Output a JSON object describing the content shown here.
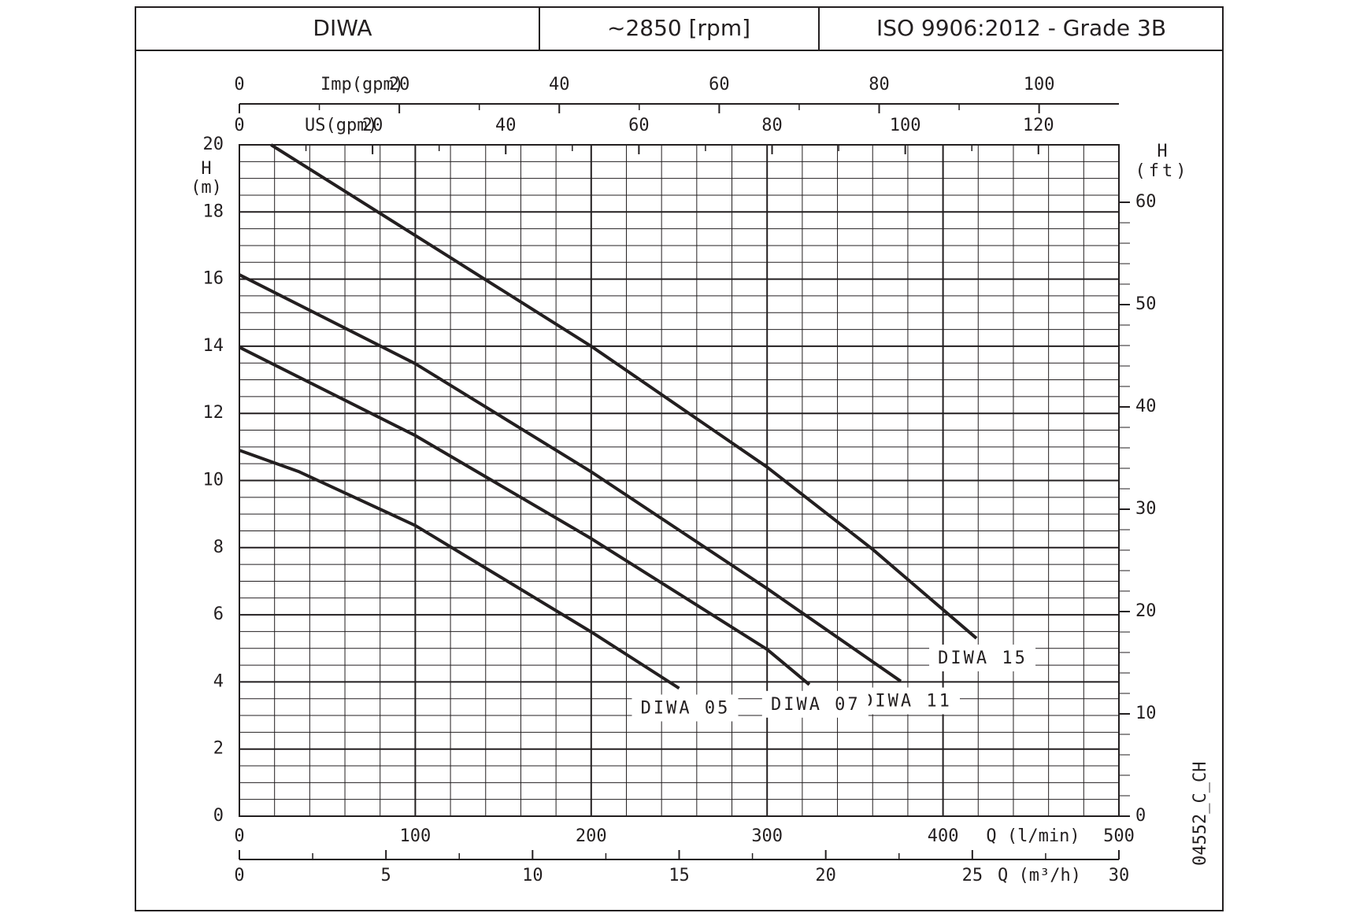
{
  "header": [
    "DIWA",
    "~2850 [rpm]",
    "ISO 9906:2012 - Grade 3B"
  ],
  "chart_data": {
    "type": "line",
    "xlim": [
      0,
      500
    ],
    "xticks": [
      0,
      100,
      200,
      300,
      400,
      500
    ],
    "xlabel": "Q (l/min)",
    "ylim": [
      0,
      20
    ],
    "yticks": [
      0,
      2,
      4,
      6,
      8,
      10,
      12,
      14,
      16,
      18,
      20
    ],
    "ylabel": [
      "H",
      "(m)"
    ],
    "y2lim": [
      0,
      65.6168
    ],
    "y2ticks": [
      0,
      10,
      20,
      30,
      40,
      50,
      60
    ],
    "y2label": [
      "H",
      "(ft)"
    ],
    "grid": true,
    "x_minor_divisions": 5,
    "y_minor_divisions": 4,
    "y2_minor_divisions": 5,
    "extra_x_axes": [
      {
        "label": "Imp(gpm)",
        "lim": [
          0,
          109.98
        ],
        "ticks": [
          0,
          20,
          40,
          60,
          80,
          100
        ],
        "position": "top"
      },
      {
        "label": "US(gpm)",
        "lim": [
          0,
          132.09
        ],
        "ticks": [
          0,
          20,
          40,
          60,
          80,
          100,
          120
        ],
        "position": "top"
      },
      {
        "label": "Q (m³/h)",
        "lim": [
          0,
          30
        ],
        "ticks": [
          0,
          5,
          10,
          15,
          20,
          25,
          30
        ],
        "position": "bottom"
      }
    ],
    "series": [
      {
        "name": "DIWA 15",
        "color": "#231f20",
        "x": [
          18,
          100,
          200,
          300,
          360,
          419
        ],
        "values": [
          20,
          17.3,
          14.0,
          10.4,
          7.95,
          5.3
        ]
      },
      {
        "name": "DIWA 11",
        "color": "#231f20",
        "x": [
          0,
          100,
          200,
          300,
          376
        ],
        "values": [
          16.13,
          13.48,
          10.26,
          6.78,
          4.02
        ]
      },
      {
        "name": "DIWA 07",
        "color": "#231f20",
        "x": [
          0,
          100,
          200,
          300,
          324
        ],
        "values": [
          13.97,
          11.34,
          8.27,
          4.97,
          3.92
        ]
      },
      {
        "name": "DIWA 05",
        "color": "#231f20",
        "x": [
          0,
          34,
          100,
          200,
          250
        ],
        "values": [
          10.9,
          10.26,
          8.66,
          5.49,
          3.81
        ]
      }
    ],
    "code": "04552_C_CH"
  }
}
